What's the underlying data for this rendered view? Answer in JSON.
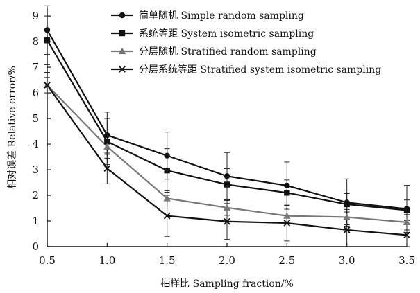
{
  "chart_data": {
    "type": "line",
    "title": "",
    "xlabel": "抽样比 Sampling fraction/%",
    "ylabel": "相对误差 Relative error/%",
    "x": [
      0.5,
      1.0,
      1.5,
      2.0,
      2.5,
      3.0,
      3.5
    ],
    "x_tick_labels": [
      "0.5",
      "1.0",
      "1.5",
      "2.0",
      "2.5",
      "3.0",
      "3.5"
    ],
    "xlim": [
      0.5,
      3.5
    ],
    "y_ticks": [
      0,
      1,
      2,
      3,
      4,
      5,
      6,
      7,
      8,
      9
    ],
    "ylim": [
      0,
      9.3
    ],
    "grid": false,
    "legend_position": "top-right",
    "series": [
      {
        "name": "简单随机 Simple random sampling",
        "marker": "circle",
        "color": "#111111",
        "values": [
          8.45,
          4.35,
          3.55,
          2.75,
          2.38,
          1.72,
          1.47
        ],
        "error": [
          0.95,
          0.9,
          0.92,
          0.92,
          0.92,
          0.92,
          0.92
        ]
      },
      {
        "name": "系统等距 System isometric sampling",
        "marker": "square",
        "color": "#111111",
        "values": [
          8.05,
          4.1,
          2.97,
          2.42,
          2.1,
          1.65,
          1.42
        ],
        "error": [
          0.95,
          0.9,
          0.85,
          0.62,
          0.5,
          0.42,
          0.4
        ]
      },
      {
        "name": "分层随机 Stratified random sampling",
        "marker": "triangle",
        "color": "#777777",
        "values": [
          6.3,
          3.9,
          1.88,
          1.52,
          1.2,
          1.15,
          0.95
        ],
        "error": [
          0.3,
          0.3,
          0.3,
          0.3,
          0.3,
          0.3,
          0.3
        ]
      },
      {
        "name": "分层系统等距 Stratified system isometric sampling",
        "marker": "x",
        "color": "#111111",
        "values": [
          6.3,
          3.05,
          1.2,
          0.98,
          0.92,
          0.65,
          0.45
        ],
        "error": [
          0.5,
          0.6,
          0.8,
          0.7,
          0.7,
          0.7,
          0.7
        ]
      }
    ]
  }
}
